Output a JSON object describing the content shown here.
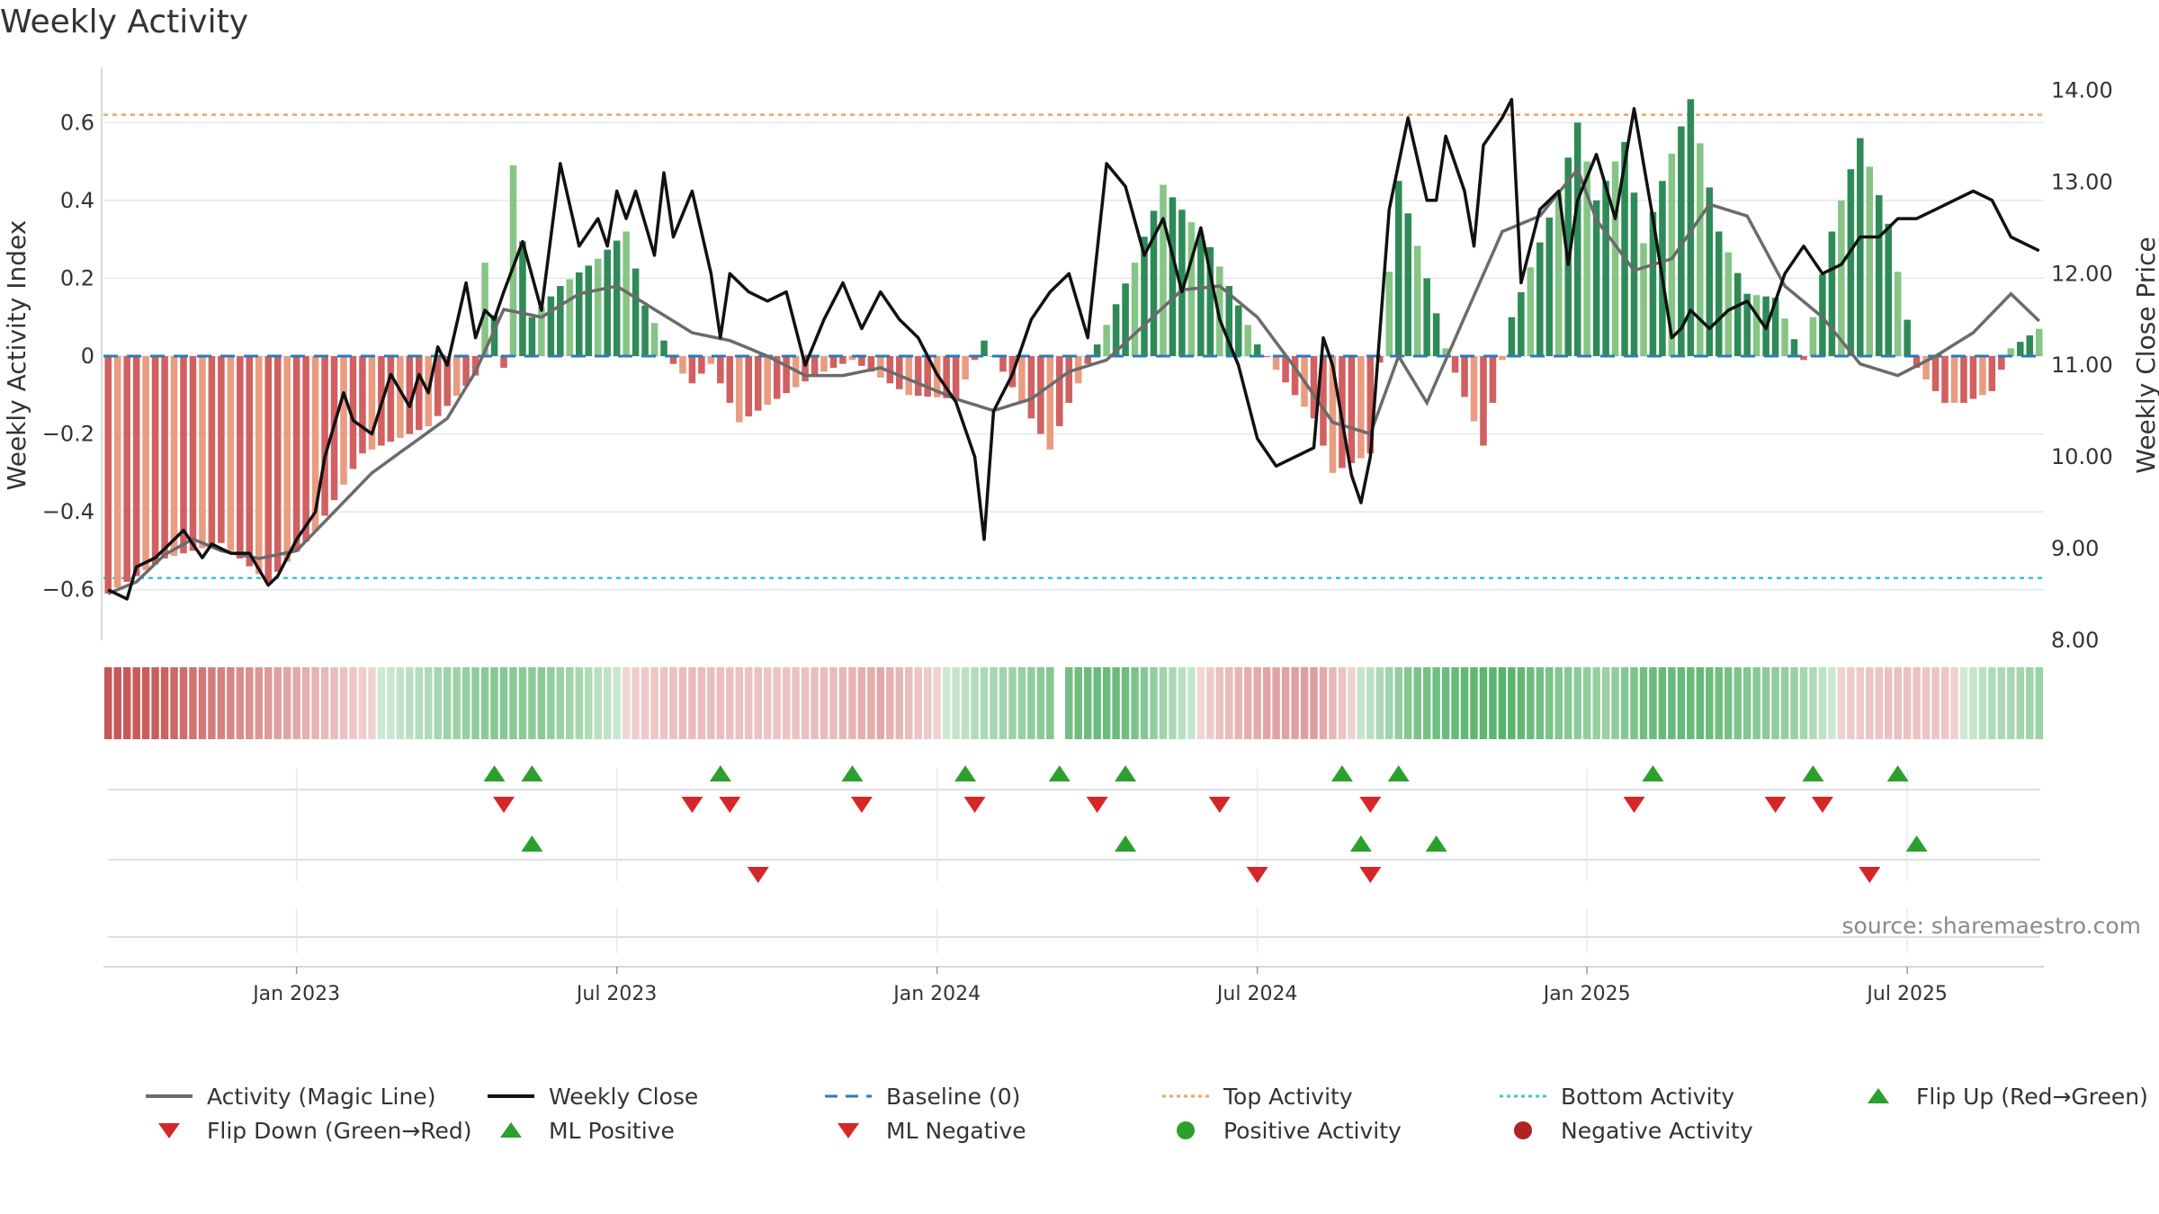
{
  "chart_data": {
    "type": "bar",
    "title": "Weekly Activity",
    "source": "source: sharemaestro.com",
    "ylabel_left": "Weekly Activity Index",
    "ylabel_right": "Weekly Close Price",
    "ylim_left": [
      -0.73,
      0.73
    ],
    "ylim_right": [
      8.0,
      14.2
    ],
    "yticks_left": [
      0.6,
      0.4,
      0.2,
      0,
      -0.2,
      -0.4,
      -0.6
    ],
    "yticks_left_labels": [
      "0.6",
      "0.4",
      "0.2",
      "0",
      "−0.2",
      "−0.4",
      "−0.6"
    ],
    "yticks_right": [
      14,
      13,
      12,
      11,
      10,
      9,
      8
    ],
    "yticks_right_labels": [
      "14.00",
      "13.00",
      "12.00",
      "11.00",
      "10.00",
      "9.00",
      "8.00"
    ],
    "x_ticks": [
      {
        "week": 20,
        "label": "Jan 2023"
      },
      {
        "week": 54,
        "label": "Jul 2023"
      },
      {
        "week": 88,
        "label": "Jan 2024"
      },
      {
        "week": 122,
        "label": "Jul 2024"
      },
      {
        "week": 157,
        "label": "Jan 2025"
      },
      {
        "week": 191,
        "label": "Jul 2025"
      }
    ],
    "week_count": 206,
    "top_activity": 0.62,
    "bottom_activity": -0.57,
    "activity_weeks": [
      0,
      6,
      12,
      17,
      22,
      27,
      34,
      39,
      40,
      42,
      43,
      45,
      48,
      52,
      55,
      57,
      59,
      60,
      62,
      64,
      67,
      75,
      79,
      85,
      90,
      93,
      100,
      102,
      106,
      109,
      112,
      117,
      122,
      126,
      128,
      130,
      134,
      137,
      140,
      142,
      146,
      149,
      154,
      156,
      158,
      161,
      163,
      165,
      168,
      171,
      174,
      177,
      180,
      183,
      186,
      189,
      192,
      195,
      197,
      200,
      202,
      205
    ],
    "activity_values": [
      -0.61,
      -0.52,
      -0.48,
      -0.58,
      -0.45,
      -0.25,
      -0.18,
      -0.05,
      0.24,
      -0.03,
      0.49,
      0.1,
      0.18,
      0.25,
      0.32,
      0.13,
      0.04,
      -0.02,
      -0.07,
      -0.02,
      -0.17,
      -0.05,
      -0.01,
      -0.1,
      -0.11,
      0.04,
      -0.24,
      -0.12,
      0.08,
      0.24,
      0.44,
      0.28,
      0.03,
      -0.1,
      -0.16,
      -0.3,
      -0.25,
      0.45,
      0.2,
      0.02,
      -0.23,
      0.1,
      0.42,
      0.6,
      0.4,
      0.55,
      0.29,
      0.45,
      0.66,
      0.32,
      0.16,
      0.15,
      -0.01,
      0.32,
      0.56,
      0.34,
      -0.03,
      -0.12,
      -0.12,
      -0.09,
      0.02,
      0.07
    ],
    "magic_line_weeks": [
      0,
      3,
      6,
      9,
      12,
      16,
      20,
      24,
      28,
      32,
      36,
      39,
      42,
      46,
      50,
      54,
      58,
      62,
      66,
      70,
      74,
      78,
      82,
      86,
      90,
      94,
      98,
      102,
      106,
      110,
      114,
      118,
      122,
      126,
      130,
      134,
      137,
      140,
      144,
      148,
      152,
      156,
      158,
      162,
      166,
      170,
      174,
      176,
      178,
      182,
      186,
      190,
      194,
      198,
      202,
      205
    ],
    "magic_line_values": [
      -0.61,
      -0.58,
      -0.51,
      -0.47,
      -0.5,
      -0.52,
      -0.5,
      -0.4,
      -0.3,
      -0.23,
      -0.16,
      -0.04,
      0.12,
      0.1,
      0.16,
      0.18,
      0.12,
      0.06,
      0.04,
      0.0,
      -0.05,
      -0.05,
      -0.03,
      -0.07,
      -0.11,
      -0.14,
      -0.11,
      -0.04,
      -0.01,
      0.08,
      0.17,
      0.18,
      0.1,
      -0.03,
      -0.17,
      -0.2,
      0.0,
      -0.12,
      0.1,
      0.32,
      0.36,
      0.48,
      0.35,
      0.22,
      0.25,
      0.39,
      0.36,
      0.27,
      0.18,
      0.1,
      -0.02,
      -0.05,
      0.0,
      0.06,
      0.16,
      0.09
    ],
    "weekly_close_weeks": [
      0,
      2,
      3,
      5,
      6,
      8,
      10,
      11,
      13,
      15,
      17,
      18,
      20,
      22,
      23,
      25,
      26,
      28,
      30,
      32,
      33,
      34,
      35,
      36,
      38,
      39,
      40,
      41,
      42,
      44,
      46,
      48,
      50,
      52,
      53,
      54,
      55,
      56,
      58,
      59,
      60,
      62,
      64,
      65,
      66,
      68,
      70,
      72,
      73,
      74,
      76,
      78,
      80,
      82,
      84,
      86,
      88,
      90,
      92,
      93,
      94,
      96,
      98,
      100,
      102,
      104,
      106,
      108,
      110,
      112,
      114,
      116,
      118,
      120,
      122,
      124,
      126,
      128,
      129,
      130,
      132,
      133,
      134,
      136,
      138,
      140,
      141,
      142,
      144,
      145,
      146,
      148,
      149,
      150,
      152,
      154,
      155,
      156,
      158,
      160,
      162,
      164,
      166,
      167,
      168,
      170,
      172,
      174,
      176,
      178,
      180,
      182,
      184,
      186,
      188,
      190,
      192,
      194,
      196,
      198,
      200,
      202,
      204,
      205
    ],
    "weekly_close_values": [
      8.55,
      8.45,
      8.8,
      8.9,
      9.0,
      9.2,
      8.9,
      9.05,
      8.95,
      8.95,
      8.6,
      8.7,
      9.1,
      9.4,
      10.0,
      10.7,
      10.4,
      10.25,
      10.9,
      10.55,
      10.9,
      10.7,
      11.2,
      11.0,
      11.9,
      11.3,
      11.6,
      11.5,
      11.8,
      12.35,
      11.6,
      13.2,
      12.3,
      12.6,
      12.3,
      12.9,
      12.6,
      12.9,
      12.2,
      13.1,
      12.4,
      12.9,
      12.0,
      11.3,
      12.0,
      11.8,
      11.7,
      11.8,
      11.4,
      11.0,
      11.5,
      11.9,
      11.4,
      11.8,
      11.5,
      11.3,
      10.9,
      10.6,
      10.0,
      9.1,
      10.5,
      10.9,
      11.5,
      11.8,
      12.0,
      11.3,
      13.2,
      12.95,
      12.2,
      12.6,
      11.8,
      12.5,
      11.5,
      11.0,
      10.2,
      9.9,
      10.0,
      10.1,
      11.3,
      11.0,
      9.8,
      9.5,
      10.0,
      12.7,
      13.7,
      12.8,
      12.8,
      13.5,
      12.9,
      12.3,
      13.4,
      13.7,
      13.9,
      11.9,
      12.7,
      12.9,
      12.1,
      12.8,
      13.3,
      12.6,
      13.8,
      12.6,
      11.3,
      11.4,
      11.6,
      11.4,
      11.6,
      11.7,
      11.4,
      12.0,
      12.3,
      12.0,
      12.1,
      12.4,
      12.4,
      12.6,
      12.6,
      12.7,
      12.8,
      12.9,
      12.8,
      12.4,
      12.3,
      12.25
    ],
    "strip_values": [
      -0.55,
      -0.52,
      -0.4,
      -0.3,
      -0.18,
      -0.08,
      0.05,
      0.18,
      0.28,
      0.26,
      0.12,
      -0.05,
      -0.12,
      -0.1,
      -0.08,
      -0.12,
      -0.2,
      -0.05,
      0.12,
      0.22,
      0.36,
      0.38,
      0.15,
      -0.1,
      -0.22,
      -0.25,
      0.05,
      0.3,
      0.4,
      0.45,
      0.3,
      0.2,
      0.38,
      0.4,
      0.28,
      0.2,
      -0.05,
      -0.1,
      -0.08,
      0.12,
      0.2
    ],
    "flip_up_weeks": [
      41,
      45,
      65,
      79,
      91,
      101,
      108,
      131,
      137,
      164,
      181,
      190
    ],
    "flip_down_weeks": [
      42,
      62,
      66,
      80,
      92,
      105,
      118,
      134,
      162,
      177,
      182
    ],
    "ml_positive_weeks": [
      45,
      108,
      133,
      141,
      192
    ],
    "ml_negative_weeks": [
      69,
      122,
      134,
      187
    ],
    "colors": {
      "pos_strong": "#2e8b57",
      "pos_light": "#86c585",
      "neg_strong": "#d16060",
      "neg_light": "#ea9c80",
      "magic_line": "#6b6b6b",
      "weekly_close": "#111111",
      "baseline": "#2c7bb6",
      "top_activity": "#f4a261",
      "bottom_activity": "#40c4c9",
      "flip_up": "#2ca02c",
      "flip_down": "#d62728",
      "positive_activity": "#2ca02c",
      "negative_activity": "#b22222",
      "grid": "#e3e8ec",
      "axis": "#cccccc"
    }
  },
  "legend": {
    "magic_line": "Activity (Magic Line)",
    "weekly_close": "Weekly Close",
    "baseline": "Baseline (0)",
    "top_activity": "Top Activity",
    "bottom_activity": "Bottom Activity",
    "flip_up": "Flip Up (Red→Green)",
    "flip_down": "Flip Down (Green→Red)",
    "ml_positive": "ML Positive",
    "ml_negative": "ML Negative",
    "positive_activity": "Positive Activity",
    "negative_activity": "Negative Activity"
  }
}
